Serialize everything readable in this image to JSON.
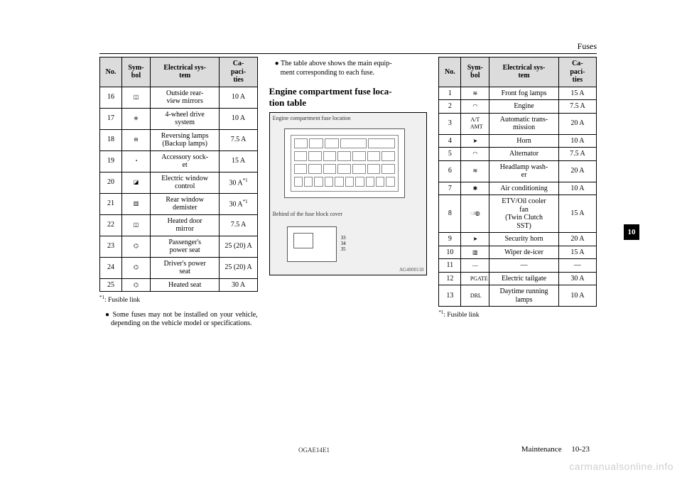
{
  "header": {
    "section": "Fuses"
  },
  "thumbTab": "10",
  "footer": {
    "docCode": "OGAE14E1",
    "chapter": "Maintenance",
    "pageNum": "10-23"
  },
  "watermark": "carmanualsonline.info",
  "tableHeader": {
    "no": "No.",
    "sym": "Sym-\nbol",
    "sys": "Electrical sys-\ntem",
    "cap": "Ca-\npaci-\nties"
  },
  "leftTable": {
    "rows": [
      {
        "no": "16",
        "sym": "◫",
        "sys": "Outside rear-\nview mirrors",
        "cap": "10 A"
      },
      {
        "no": "17",
        "sym": "⎈",
        "sys": "4-wheel drive\nsystem",
        "cap": "10 A"
      },
      {
        "no": "18",
        "sym": "⊖",
        "sys": "Reversing lamps\n(Backup lamps)",
        "cap": "7.5 A"
      },
      {
        "no": "19",
        "sym": "◔",
        "sys": "Accessory sock-\net",
        "cap": "15 A"
      },
      {
        "no": "20",
        "sym": "◪",
        "sys": "Electric window\ncontrol",
        "cap": "30 A*1"
      },
      {
        "no": "21",
        "sym": "▥",
        "sys": "Rear window\ndemister",
        "cap": "30 A*1"
      },
      {
        "no": "22",
        "sym": "◫",
        "sys": "Heated door\nmirror",
        "cap": "7.5 A"
      },
      {
        "no": "23",
        "sym": "⌬",
        "sys": "Passenger's\npower seat",
        "cap": "25 (20) A"
      },
      {
        "no": "24",
        "sym": "⌬",
        "sys": "Driver's power\nseat",
        "cap": "25 (20) A"
      },
      {
        "no": "25",
        "sym": "⌬",
        "sys": "Heated seat",
        "cap": "30 A"
      }
    ],
    "footnote": "*1: Fusible link",
    "bullet1": "Some fuses may not be installed on your vehicle, depending on the vehicle model or specifications."
  },
  "middleCol": {
    "bulletTop": "The table above shows the main equip-\nment corresponding to each fuse.",
    "heading": "Engine compartment fuse loca-\ntion table",
    "fig1Caption": "Engine compartment fuse location",
    "fig2Caption": "Behind of the fuse block cover",
    "coverNums": "33\n34\n35",
    "figCode": "AG4000118"
  },
  "rightTable": {
    "rows": [
      {
        "no": "1",
        "sym": "≋",
        "sys": "Front fog lamps",
        "cap": "15 A"
      },
      {
        "no": "2",
        "sym": "◠",
        "sys": "Engine",
        "cap": "7.5 A"
      },
      {
        "no": "3",
        "sym": "A/T\nAMT",
        "sys": "Automatic trans-\nmission",
        "cap": "20 A"
      },
      {
        "no": "4",
        "sym": "➤",
        "sys": "Horn",
        "cap": "10 A"
      },
      {
        "no": "5",
        "sym": "◠",
        "sys": "Alternator",
        "cap": "7.5 A"
      },
      {
        "no": "6",
        "sym": "≋",
        "sys": "Headlamp wash-\ner",
        "cap": "20 A"
      },
      {
        "no": "7",
        "sym": "✱",
        "sys": "Air conditioning",
        "cap": "10 A"
      },
      {
        "no": "8",
        "sym": "◌/◍",
        "sys": "ETV/Oil cooler\nfan\n(Twin Clutch\nSST)",
        "cap": "15 A"
      },
      {
        "no": "9",
        "sym": "➤",
        "sys": "Security horn",
        "cap": "20 A"
      },
      {
        "no": "10",
        "sym": "▥",
        "sys": "Wiper de-icer",
        "cap": "15 A"
      },
      {
        "no": "11",
        "sym": "—",
        "sys": "—",
        "cap": "—"
      },
      {
        "no": "12",
        "sym": "PGATE",
        "sys": "Electric tailgate",
        "cap": "30 A"
      },
      {
        "no": "13",
        "sym": "DRL",
        "sys": "Daytime running\nlamps",
        "cap": "10 A"
      }
    ],
    "footnote": "*1: Fusible link"
  },
  "colors": {
    "headerBg": "#dcdcdc",
    "border": "#000000",
    "figBg": "#f0f0f0",
    "watermark": "#cfcfcf"
  }
}
